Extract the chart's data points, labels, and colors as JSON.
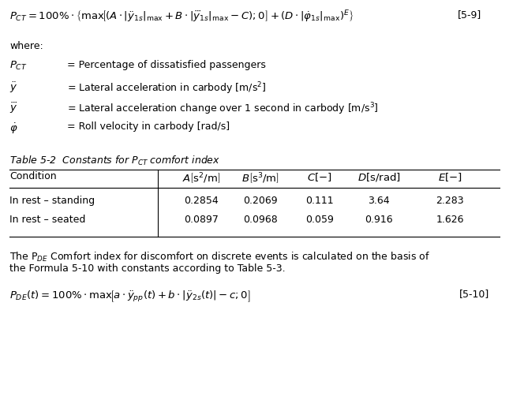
{
  "bg_color": "#ffffff",
  "fig_width": 6.45,
  "fig_height": 5.21,
  "label_top_right": "[5-9]",
  "where_text": "where:",
  "table_title": "Table 5-2  Constants for $P_{CT}$ comfort index",
  "col_headers": [
    "Condition",
    "$A\\left[\\mathrm{s}^2/\\mathrm{m}\\right]$",
    "$B\\left[\\mathrm{s}^3/\\mathrm{m}\\right]$",
    "$C\\left[-\\right]$",
    "$D\\left[\\mathrm{s/rad}\\right]$",
    "$E\\left[-\\right]$"
  ],
  "rows": [
    [
      "In rest – standing",
      "0.2854",
      "0.2069",
      "0.111",
      "3.64",
      "2.283"
    ],
    [
      "In rest – seated",
      "0.0897",
      "0.0968",
      "0.059",
      "0.916",
      "1.626"
    ]
  ],
  "label_bottom_right": "[5-10]",
  "font_family": "DejaVu Sans"
}
